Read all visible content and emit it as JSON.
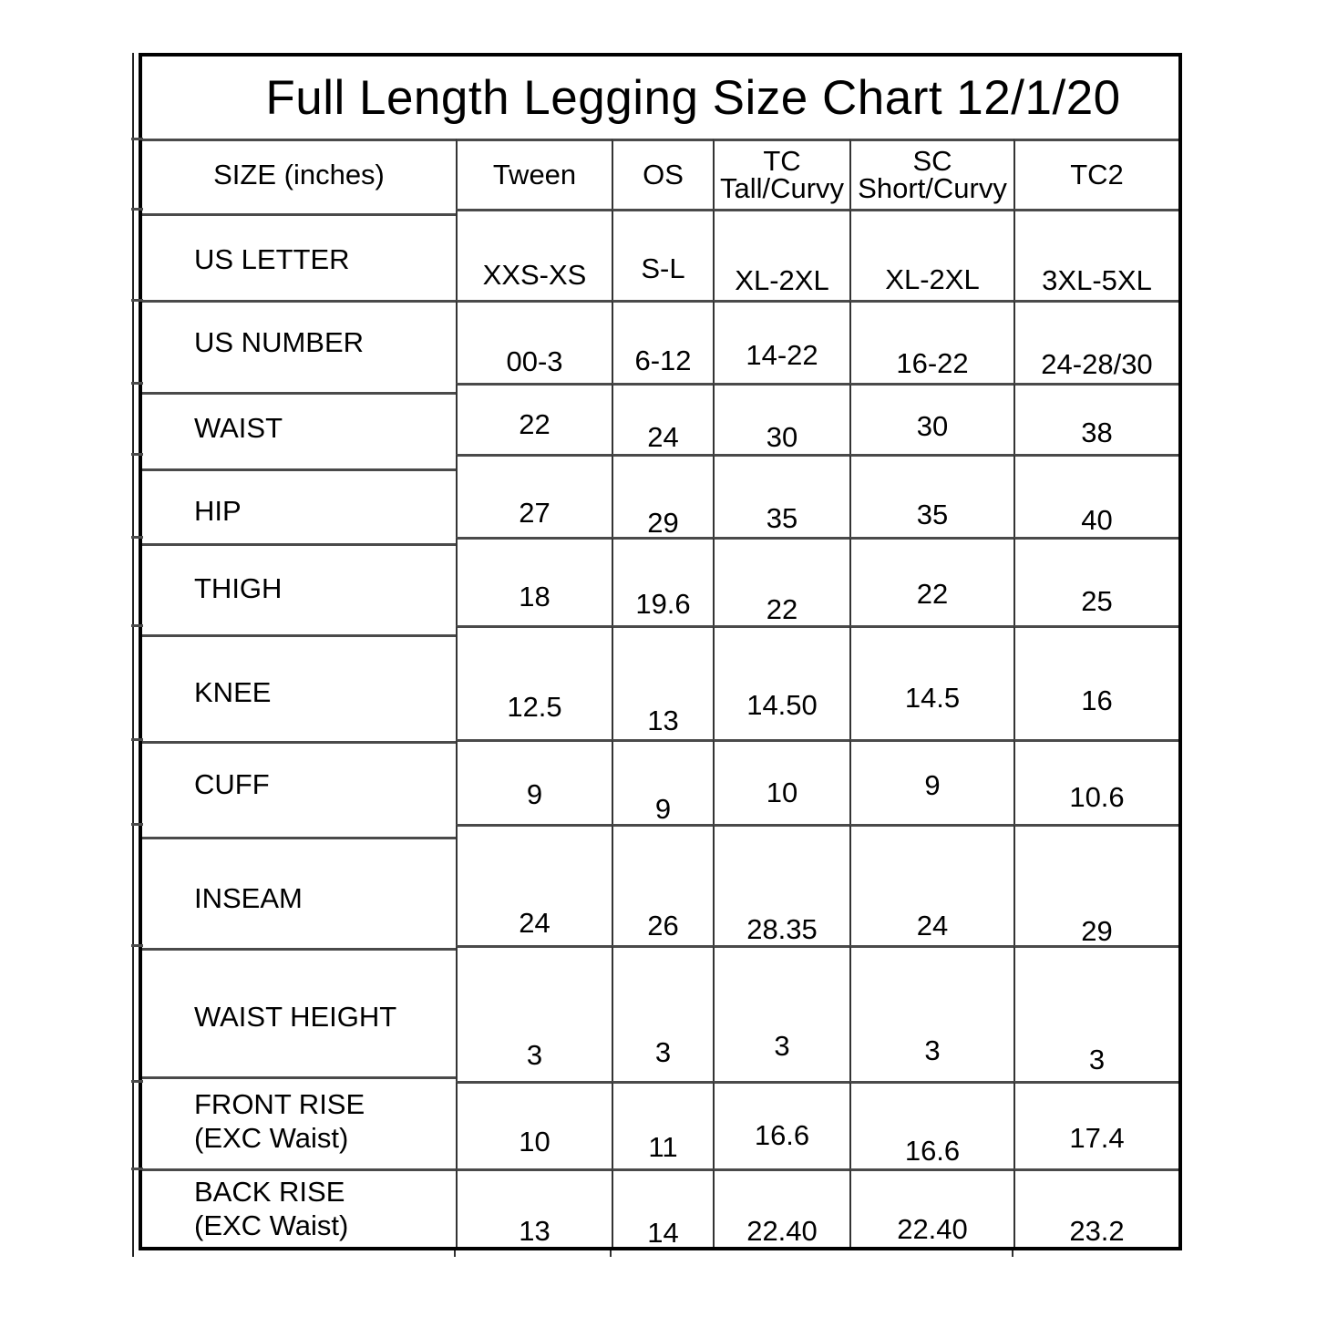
{
  "colors": {
    "outer_border": "#000000",
    "grid_line_horizontal": "#4a4a4a",
    "grid_line_vertical": "#333333",
    "text": "#000000",
    "background": "#ffffff"
  },
  "chart_data": {
    "type": "table",
    "title": "Full Length Legging Size Chart 12/1/20",
    "columns": [
      "SIZE (inches)",
      "Tween",
      "OS",
      "TC\nTall/Curvy",
      "SC\nShort/Curvy",
      "TC2"
    ],
    "rows": [
      {
        "label": "US LETTER",
        "values": [
          "XXS-XS",
          "S-L",
          "XL-2XL",
          "XL-2XL",
          "3XL-5XL"
        ]
      },
      {
        "label": "US NUMBER",
        "values": [
          "00-3",
          "6-12",
          "14-22",
          "16-22",
          "24-28/30"
        ]
      },
      {
        "label": "WAIST",
        "values": [
          "22",
          "24",
          "30",
          "30",
          "38"
        ]
      },
      {
        "label": "HIP",
        "values": [
          "27",
          "29",
          "35",
          "35",
          "40"
        ]
      },
      {
        "label": "THIGH",
        "values": [
          "18",
          "19.6",
          "22",
          "22",
          "25"
        ]
      },
      {
        "label": "KNEE",
        "values": [
          "12.5",
          "13",
          "14.50",
          "14.5",
          "16"
        ]
      },
      {
        "label": "CUFF",
        "values": [
          "9",
          "9",
          "10",
          "9",
          "10.6"
        ]
      },
      {
        "label": "INSEAM",
        "values": [
          "24",
          "26",
          "28.35",
          "24",
          "29"
        ]
      },
      {
        "label": "WAIST HEIGHT",
        "values": [
          "3",
          "3",
          "3",
          "3",
          "3"
        ]
      },
      {
        "label": "FRONT RISE\n(EXC Waist)",
        "values": [
          "10",
          "11",
          "16.6",
          "16.6",
          "17.4"
        ]
      },
      {
        "label": "BACK RISE\n(EXC Waist)",
        "values": [
          "13",
          "14",
          "22.40",
          "22.40",
          "23.2"
        ]
      }
    ]
  }
}
